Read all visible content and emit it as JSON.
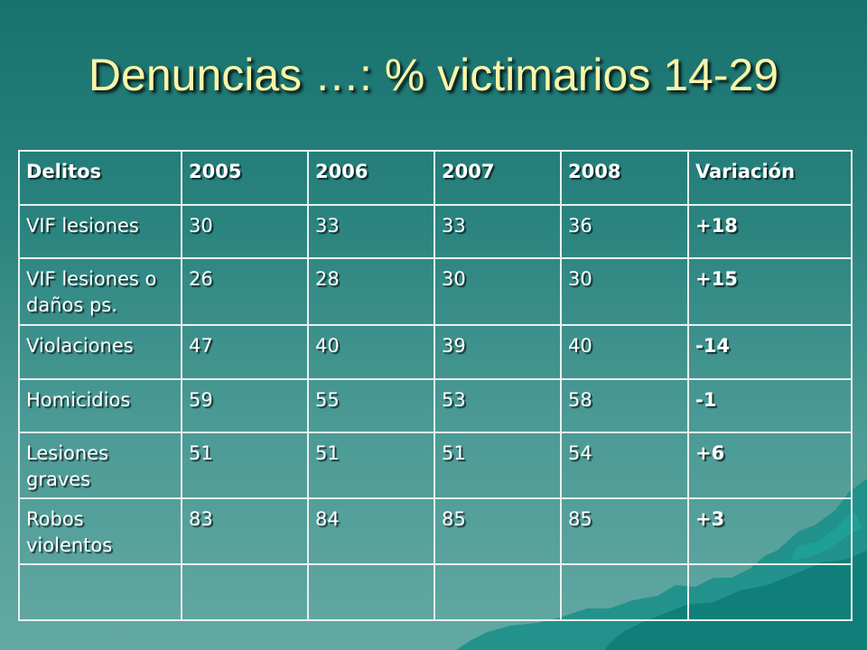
{
  "slide": {
    "title": "Denuncias …: % victimarios 14-29"
  },
  "colors": {
    "background_top": "#17716d",
    "background_bottom": "#63a8a3",
    "title": "#fbf4a8",
    "table_text": "#ffffff",
    "table_border": "#e9f0ef"
  },
  "table": {
    "headers": [
      "Delitos",
      "2005",
      "2006",
      "2007",
      "2008",
      "Variación"
    ],
    "rows": [
      [
        "VIF lesiones",
        "30",
        "33",
        "33",
        "36",
        "+18"
      ],
      [
        "VIF lesiones o daños ps.",
        "26",
        "28",
        "30",
        "30",
        "+15"
      ],
      [
        "Violaciones",
        "47",
        "40",
        "39",
        "40",
        "-14"
      ],
      [
        "Homicidios",
        "59",
        "55",
        "53",
        "58",
        "-1"
      ],
      [
        "Lesiones graves",
        "51",
        "51",
        "51",
        "54",
        "+6"
      ],
      [
        "Robos violentos",
        "83",
        "84",
        "85",
        "85",
        "+3"
      ],
      [
        "",
        "",
        "",
        "",
        "",
        ""
      ]
    ]
  }
}
